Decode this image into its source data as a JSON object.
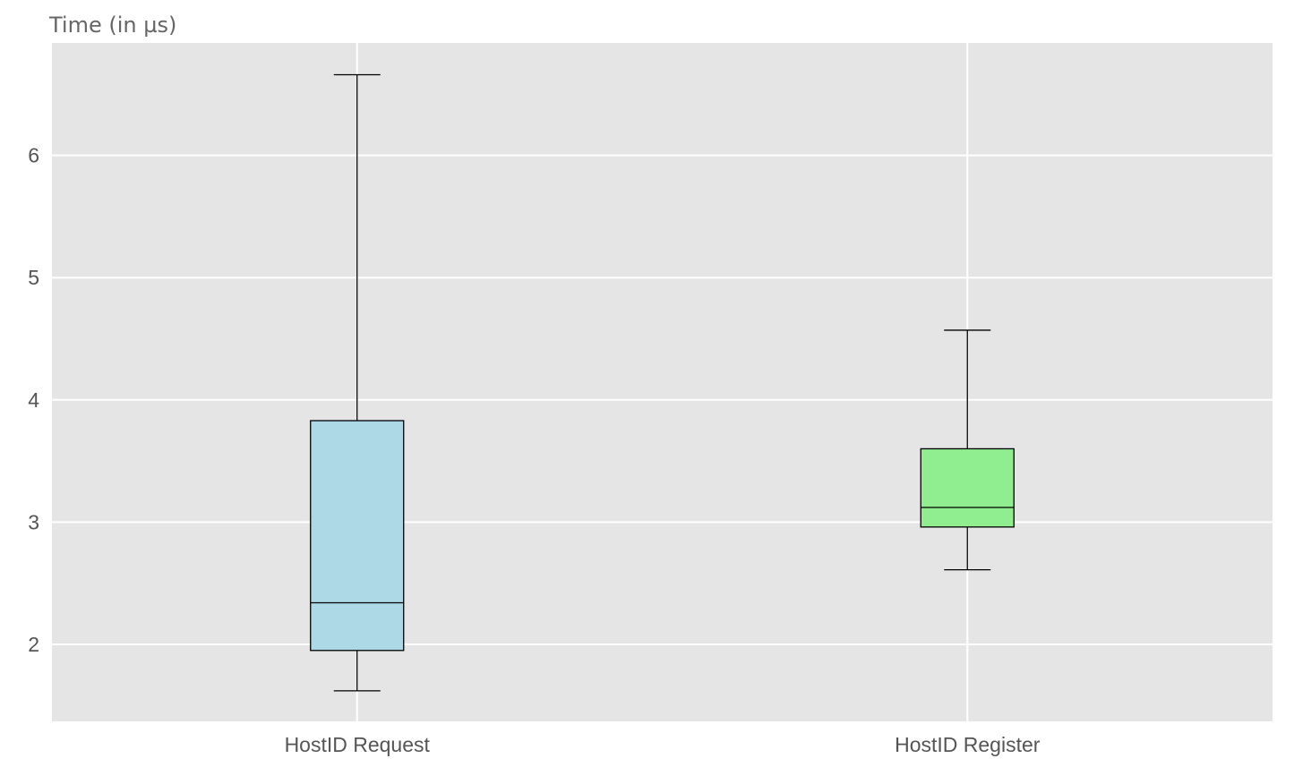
{
  "chart_data": {
    "type": "box",
    "title": "",
    "xlabel": "",
    "ylabel": "Time (in µs)",
    "ylim": [
      1.37,
      6.92
    ],
    "yticks": [
      2,
      3,
      4,
      5,
      6
    ],
    "grid": true,
    "categories": [
      "HostID Request",
      "HostID Register"
    ],
    "boxes": [
      {
        "category": "HostID Request",
        "whisker_low": 1.62,
        "q1": 1.95,
        "median": 2.34,
        "q3": 3.83,
        "whisker_high": 6.66,
        "color": "#add8e6"
      },
      {
        "category": "HostID Register",
        "whisker_low": 2.61,
        "q1": 2.96,
        "median": 3.12,
        "q3": 3.6,
        "whisker_high": 4.57,
        "color": "#90ee90"
      }
    ],
    "colors": {
      "plot_background": "#e5e5e5",
      "grid": "#ffffff",
      "stroke": "#000000"
    }
  }
}
